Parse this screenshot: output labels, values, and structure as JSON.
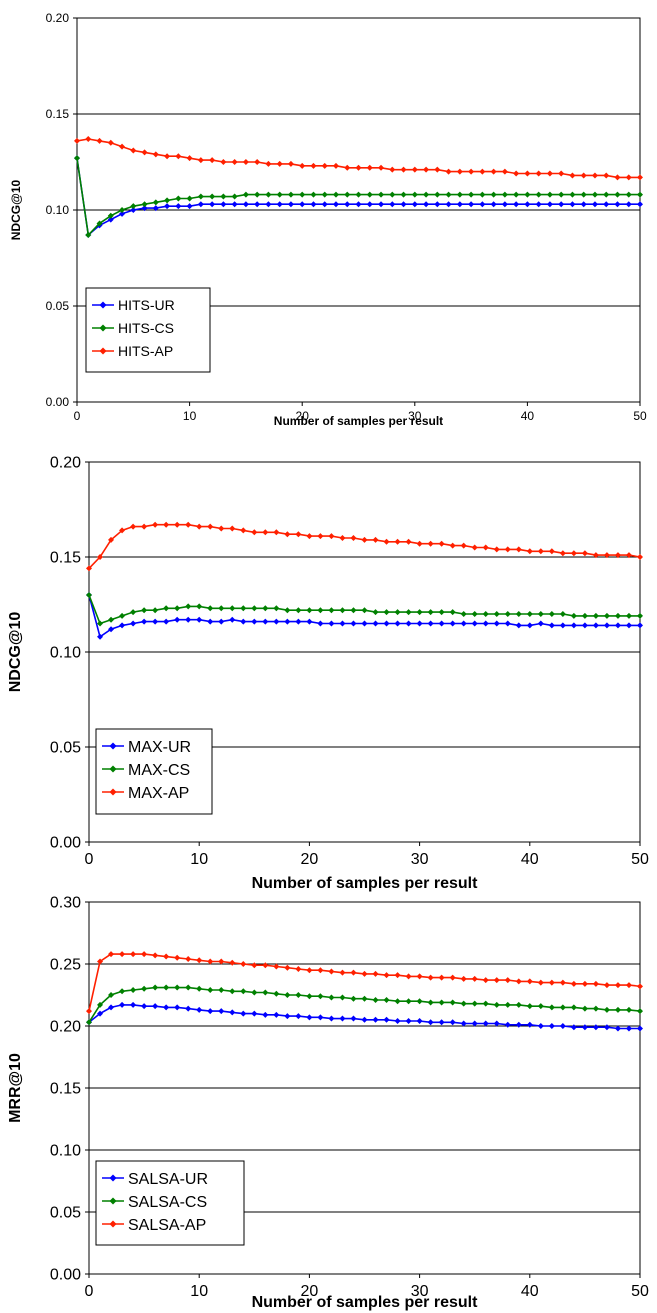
{
  "chart_data": [
    {
      "type": "line",
      "xlabel": "Number of samples per result",
      "ylabel": "NDCG@10",
      "xlim": [
        0,
        50
      ],
      "ylim": [
        0,
        0.2
      ],
      "xticks": [
        "0",
        "10",
        "20",
        "30",
        "40",
        "50"
      ],
      "yticks": [
        "0.00",
        "0.05",
        "0.10",
        "0.15",
        "0.20"
      ],
      "grid": "horizontal",
      "legend_position": "bottom-left",
      "series": [
        {
          "name": "HITS-UR",
          "color": "#0000ff",
          "values": [
            0.127,
            0.087,
            0.092,
            0.095,
            0.098,
            0.1,
            0.101,
            0.101,
            0.102,
            0.102,
            0.102,
            0.103,
            0.103,
            0.103,
            0.103,
            0.103,
            0.103,
            0.103,
            0.103,
            0.103,
            0.103,
            0.103,
            0.103,
            0.103,
            0.103,
            0.103,
            0.103,
            0.103,
            0.103,
            0.103,
            0.103,
            0.103,
            0.103,
            0.103,
            0.103,
            0.103,
            0.103,
            0.103,
            0.103,
            0.103,
            0.103,
            0.103,
            0.103,
            0.103,
            0.103,
            0.103,
            0.103,
            0.103,
            0.103,
            0.103,
            0.103
          ]
        },
        {
          "name": "HITS-CS",
          "color": "#008000",
          "values": [
            0.127,
            0.087,
            0.093,
            0.097,
            0.1,
            0.102,
            0.103,
            0.104,
            0.105,
            0.106,
            0.106,
            0.107,
            0.107,
            0.107,
            0.107,
            0.108,
            0.108,
            0.108,
            0.108,
            0.108,
            0.108,
            0.108,
            0.108,
            0.108,
            0.108,
            0.108,
            0.108,
            0.108,
            0.108,
            0.108,
            0.108,
            0.108,
            0.108,
            0.108,
            0.108,
            0.108,
            0.108,
            0.108,
            0.108,
            0.108,
            0.108,
            0.108,
            0.108,
            0.108,
            0.108,
            0.108,
            0.108,
            0.108,
            0.108,
            0.108,
            0.108
          ]
        },
        {
          "name": "HITS-AP",
          "color": "#ff2000",
          "values": [
            0.136,
            0.137,
            0.136,
            0.135,
            0.133,
            0.131,
            0.13,
            0.129,
            0.128,
            0.128,
            0.127,
            0.126,
            0.126,
            0.125,
            0.125,
            0.125,
            0.125,
            0.124,
            0.124,
            0.124,
            0.123,
            0.123,
            0.123,
            0.123,
            0.122,
            0.122,
            0.122,
            0.122,
            0.121,
            0.121,
            0.121,
            0.121,
            0.121,
            0.12,
            0.12,
            0.12,
            0.12,
            0.12,
            0.12,
            0.119,
            0.119,
            0.119,
            0.119,
            0.119,
            0.118,
            0.118,
            0.118,
            0.118,
            0.117,
            0.117,
            0.117
          ]
        }
      ]
    },
    {
      "type": "line",
      "xlabel": "Number of samples per result",
      "ylabel": "NDCG@10",
      "xlim": [
        0,
        50
      ],
      "ylim": [
        0,
        0.2
      ],
      "xticks": [
        "0",
        "10",
        "20",
        "30",
        "40",
        "50"
      ],
      "yticks": [
        "0.00",
        "0.05",
        "0.10",
        "0.15",
        "0.20"
      ],
      "grid": "horizontal",
      "legend_position": "bottom-left",
      "series": [
        {
          "name": "MAX-UR",
          "color": "#0000ff",
          "values": [
            0.13,
            0.108,
            0.112,
            0.114,
            0.115,
            0.116,
            0.116,
            0.116,
            0.117,
            0.117,
            0.117,
            0.116,
            0.116,
            0.117,
            0.116,
            0.116,
            0.116,
            0.116,
            0.116,
            0.116,
            0.116,
            0.115,
            0.115,
            0.115,
            0.115,
            0.115,
            0.115,
            0.115,
            0.115,
            0.115,
            0.115,
            0.115,
            0.115,
            0.115,
            0.115,
            0.115,
            0.115,
            0.115,
            0.115,
            0.114,
            0.114,
            0.115,
            0.114,
            0.114,
            0.114,
            0.114,
            0.114,
            0.114,
            0.114,
            0.114,
            0.114
          ]
        },
        {
          "name": "MAX-CS",
          "color": "#008000",
          "values": [
            0.13,
            0.115,
            0.117,
            0.119,
            0.121,
            0.122,
            0.122,
            0.123,
            0.123,
            0.124,
            0.124,
            0.123,
            0.123,
            0.123,
            0.123,
            0.123,
            0.123,
            0.123,
            0.122,
            0.122,
            0.122,
            0.122,
            0.122,
            0.122,
            0.122,
            0.122,
            0.121,
            0.121,
            0.121,
            0.121,
            0.121,
            0.121,
            0.121,
            0.121,
            0.12,
            0.12,
            0.12,
            0.12,
            0.12,
            0.12,
            0.12,
            0.12,
            0.12,
            0.12,
            0.119,
            0.119,
            0.119,
            0.119,
            0.119,
            0.119,
            0.119
          ]
        },
        {
          "name": "MAX-AP",
          "color": "#ff2000",
          "values": [
            0.144,
            0.15,
            0.159,
            0.164,
            0.166,
            0.166,
            0.167,
            0.167,
            0.167,
            0.167,
            0.166,
            0.166,
            0.165,
            0.165,
            0.164,
            0.163,
            0.163,
            0.163,
            0.162,
            0.162,
            0.161,
            0.161,
            0.161,
            0.16,
            0.16,
            0.159,
            0.159,
            0.158,
            0.158,
            0.158,
            0.157,
            0.157,
            0.157,
            0.156,
            0.156,
            0.155,
            0.155,
            0.154,
            0.154,
            0.154,
            0.153,
            0.153,
            0.153,
            0.152,
            0.152,
            0.152,
            0.151,
            0.151,
            0.151,
            0.151,
            0.15
          ]
        }
      ]
    },
    {
      "type": "line",
      "xlabel": "Number of samples per result",
      "ylabel": "MRR@10",
      "xlim": [
        0,
        50
      ],
      "ylim": [
        0,
        0.3
      ],
      "xticks": [
        "0",
        "10",
        "20",
        "30",
        "40",
        "50"
      ],
      "yticks": [
        "0.00",
        "0.05",
        "0.10",
        "0.15",
        "0.20",
        "0.25",
        "0.30"
      ],
      "grid": "horizontal",
      "legend_position": "bottom-left",
      "series": [
        {
          "name": "SALSA-UR",
          "color": "#0000ff",
          "values": [
            0.203,
            0.21,
            0.215,
            0.217,
            0.217,
            0.216,
            0.216,
            0.215,
            0.215,
            0.214,
            0.213,
            0.212,
            0.212,
            0.211,
            0.21,
            0.21,
            0.209,
            0.209,
            0.208,
            0.208,
            0.207,
            0.207,
            0.206,
            0.206,
            0.206,
            0.205,
            0.205,
            0.205,
            0.204,
            0.204,
            0.204,
            0.203,
            0.203,
            0.203,
            0.202,
            0.202,
            0.202,
            0.202,
            0.201,
            0.201,
            0.201,
            0.2,
            0.2,
            0.2,
            0.199,
            0.199,
            0.199,
            0.199,
            0.198,
            0.198,
            0.198
          ]
        },
        {
          "name": "SALSA-CS",
          "color": "#008000",
          "values": [
            0.203,
            0.217,
            0.225,
            0.228,
            0.229,
            0.23,
            0.231,
            0.231,
            0.231,
            0.231,
            0.23,
            0.229,
            0.229,
            0.228,
            0.228,
            0.227,
            0.227,
            0.226,
            0.225,
            0.225,
            0.224,
            0.224,
            0.223,
            0.223,
            0.222,
            0.222,
            0.221,
            0.221,
            0.22,
            0.22,
            0.22,
            0.219,
            0.219,
            0.219,
            0.218,
            0.218,
            0.218,
            0.217,
            0.217,
            0.217,
            0.216,
            0.216,
            0.215,
            0.215,
            0.215,
            0.214,
            0.214,
            0.213,
            0.213,
            0.213,
            0.212
          ]
        },
        {
          "name": "SALSA-AP",
          "color": "#ff2000",
          "values": [
            0.212,
            0.252,
            0.258,
            0.258,
            0.258,
            0.258,
            0.257,
            0.256,
            0.255,
            0.254,
            0.253,
            0.252,
            0.252,
            0.251,
            0.25,
            0.249,
            0.249,
            0.248,
            0.247,
            0.246,
            0.245,
            0.245,
            0.244,
            0.243,
            0.243,
            0.242,
            0.242,
            0.241,
            0.241,
            0.24,
            0.24,
            0.239,
            0.239,
            0.239,
            0.238,
            0.238,
            0.237,
            0.237,
            0.237,
            0.236,
            0.236,
            0.235,
            0.235,
            0.235,
            0.234,
            0.234,
            0.234,
            0.233,
            0.233,
            0.233,
            0.232
          ]
        }
      ]
    }
  ]
}
